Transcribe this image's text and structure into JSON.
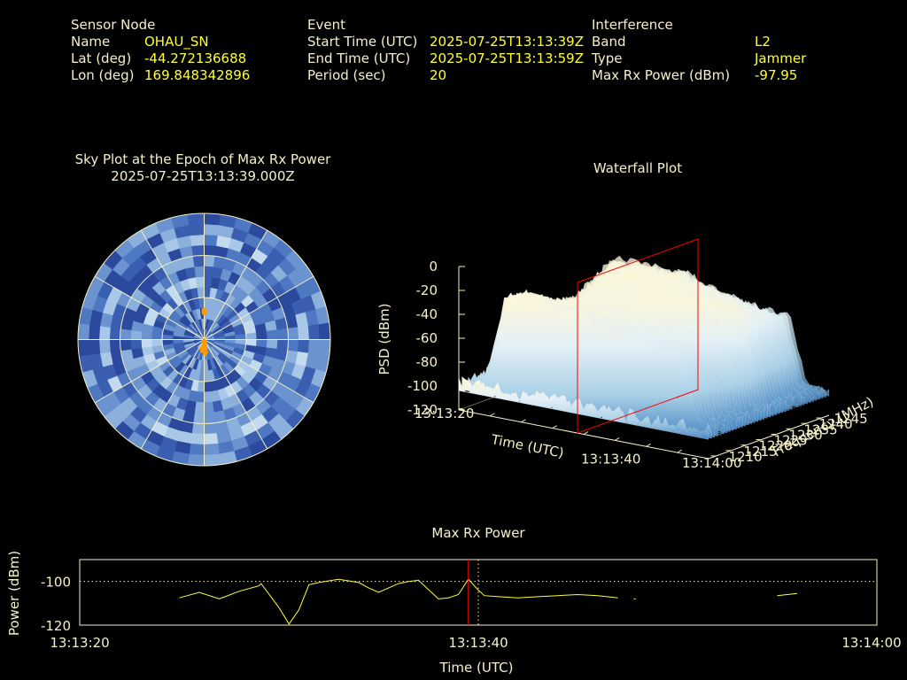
{
  "header": {
    "sensor": {
      "heading": "Sensor Node",
      "name_label": "Name",
      "name_value": "OHAU_SN",
      "lat_label": "Lat (deg)",
      "lat_value": "-44.272136688",
      "lon_label": "Lon (deg)",
      "lon_value": "169.848342896"
    },
    "event": {
      "heading": "Event",
      "start_label": "Start Time (UTC)",
      "start_value": "2025-07-25T13:13:39Z",
      "end_label": "End Time (UTC)",
      "end_value": "2025-07-25T13:13:59Z",
      "period_label": "Period (sec)",
      "period_value": "20"
    },
    "interference": {
      "heading": "Interference",
      "band_label": "Band",
      "band_value": "L2",
      "type_label": "Type",
      "type_value": "Jammer",
      "power_label": "Max Rx Power (dBm)",
      "power_value": "-97.95"
    }
  },
  "colors": {
    "label": "#f4f0c8",
    "value": "#ffff33",
    "marker": "#ff0000",
    "series": "#ffff33",
    "sky_point": "#ff9900"
  },
  "chart_data": [
    {
      "type": "heatmap",
      "title": "Sky Plot at the Epoch of Max Rx Power",
      "subtitle": "2025-07-25T13:13:39.000Z",
      "projection": "polar",
      "rings": 3,
      "spokes": 12,
      "points": [
        {
          "az": 0,
          "el": 70
        },
        {
          "az": 180,
          "el": 84
        },
        {
          "az": 180,
          "el": 86
        },
        {
          "az": 180,
          "el": 88
        },
        {
          "az": 190,
          "el": 83
        },
        {
          "az": 175,
          "el": 81
        }
      ]
    },
    {
      "type": "area",
      "title": "Waterfall Plot",
      "xlabel": "Time (UTC)",
      "ylabel": "Frequency (MHz)",
      "zlabel": "PSD (dBm)",
      "x_ticks": [
        "13:13:20",
        "13:13:40",
        "13:14:00"
      ],
      "y_ticks": [
        1210,
        1215,
        1220,
        1225,
        1230,
        1235,
        1240,
        1245
      ],
      "z_ticks": [
        0,
        -20,
        -40,
        -60,
        -80,
        -100,
        -120
      ],
      "zlim": [
        -120,
        0
      ],
      "marker_time": "13:13:39"
    },
    {
      "type": "line",
      "title": "Max Rx Power",
      "xlabel": "Time (UTC)",
      "ylabel": "Power (dBm)",
      "x_ticks": [
        "13:13:20",
        "13:13:40",
        "13:14:00"
      ],
      "y_ticks": [
        -100,
        -120
      ],
      "ylim": [
        -120,
        -90
      ],
      "xlim": [
        0,
        40
      ],
      "reference_y": -100,
      "marker_x": 19.5,
      "cursor_x": 20,
      "series": [
        {
          "segments": [
            [
              [
                5,
                -107.5
              ],
              [
                6,
                -105
              ],
              [
                7,
                -108
              ],
              [
                8,
                -104.5
              ],
              [
                9,
                -102
              ],
              [
                9.1,
                -101
              ],
              [
                10,
                -112
              ],
              [
                10.5,
                -119.5
              ],
              [
                11,
                -113
              ],
              [
                11.5,
                -101.5
              ],
              [
                12,
                -100.5
              ],
              [
                13,
                -99
              ],
              [
                14,
                -100.5
              ],
              [
                14.5,
                -103
              ],
              [
                15,
                -105
              ],
              [
                16,
                -101
              ],
              [
                16.5,
                -100
              ],
              [
                17,
                -99.5
              ],
              [
                18,
                -108
              ],
              [
                18.5,
                -107.5
              ],
              [
                19,
                -106
              ],
              [
                19.5,
                -99
              ],
              [
                20,
                -104
              ],
              [
                20.3,
                -106.5
              ],
              [
                21,
                -107
              ],
              [
                22,
                -107.5
              ],
              [
                23,
                -107
              ],
              [
                24,
                -106.5
              ],
              [
                25,
                -106
              ],
              [
                26,
                -106.5
              ],
              [
                27,
                -107.5
              ]
            ],
            [
              [
                27.8,
                -108
              ],
              [
                27.9,
                -108
              ]
            ],
            [
              [
                35,
                -106.5
              ],
              [
                35.5,
                -106
              ],
              [
                36,
                -105.5
              ]
            ]
          ]
        }
      ]
    }
  ]
}
